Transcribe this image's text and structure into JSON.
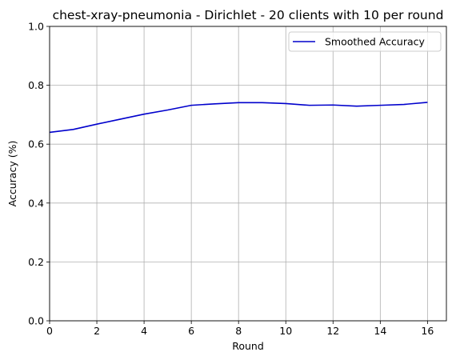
{
  "chart_data": {
    "type": "line",
    "title": "chest-xray-pneumonia - Dirichlet - 20 clients with 10 per round",
    "xlabel": "Round",
    "ylabel": "Accuracy (%)",
    "xlim": [
      0,
      16.8
    ],
    "ylim": [
      0,
      1.0
    ],
    "xticks": [
      0,
      2,
      4,
      6,
      8,
      10,
      12,
      14,
      16
    ],
    "xtick_labels": [
      "0",
      "2",
      "4",
      "6",
      "8",
      "10",
      "12",
      "14",
      "16"
    ],
    "yticks": [
      0,
      0.2,
      0.4,
      0.6,
      0.8,
      1.0
    ],
    "ytick_labels": [
      "0.0",
      "0.2",
      "0.4",
      "0.6",
      "0.8",
      "1.0"
    ],
    "grid": true,
    "legend_position": "top-right",
    "series": [
      {
        "name": "Smoothed Accuracy",
        "color": "#0000cc",
        "x": [
          0,
          1,
          2,
          3,
          4,
          5,
          6,
          7,
          8,
          9,
          10,
          11,
          12,
          13,
          14,
          15,
          16
        ],
        "y": [
          0.64,
          0.65,
          0.668,
          0.685,
          0.702,
          0.716,
          0.732,
          0.737,
          0.741,
          0.741,
          0.738,
          0.732,
          0.733,
          0.729,
          0.732,
          0.735,
          0.742
        ]
      }
    ]
  }
}
